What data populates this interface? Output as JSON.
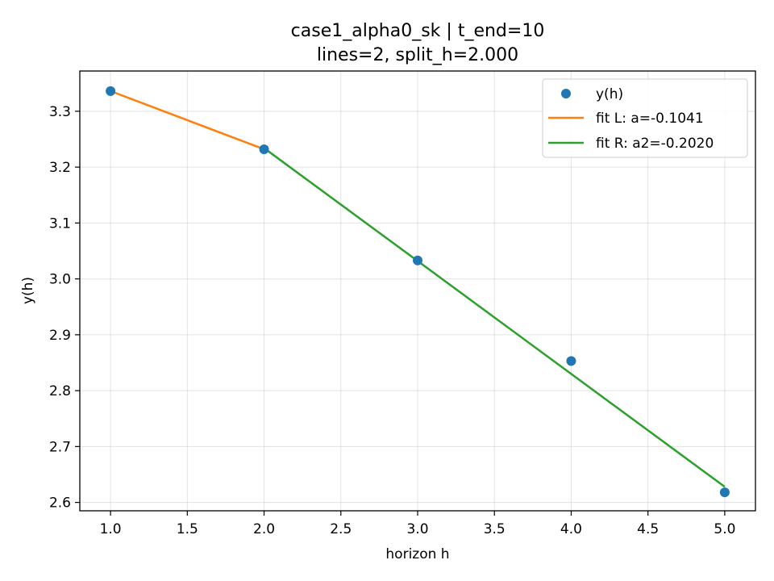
{
  "chart_data": {
    "type": "line",
    "title_line1": "case1_alpha0_sk | t_end=10",
    "title_line2": "lines=2, split_h=2.000",
    "xlabel": "horizon h",
    "ylabel": "y(h)",
    "xlim": [
      0.8,
      5.2
    ],
    "ylim": [
      2.585,
      3.372
    ],
    "xticks": [
      1.0,
      1.5,
      2.0,
      2.5,
      3.0,
      3.5,
      4.0,
      4.5,
      5.0
    ],
    "xtick_labels": [
      "1.0",
      "1.5",
      "2.0",
      "2.5",
      "3.0",
      "3.5",
      "4.0",
      "4.5",
      "5.0"
    ],
    "yticks": [
      2.6,
      2.7,
      2.8,
      2.9,
      3.0,
      3.1,
      3.2,
      3.3
    ],
    "ytick_labels": [
      "2.6",
      "2.7",
      "2.8",
      "2.9",
      "3.0",
      "3.1",
      "3.2",
      "3.3"
    ],
    "grid": true,
    "legend_position": "top-right",
    "points": {
      "name": "y(h)",
      "color": "#1f77b4",
      "x": [
        1.0,
        2.0,
        3.0,
        4.0,
        5.0
      ],
      "y": [
        3.336,
        3.232,
        3.033,
        2.853,
        2.618
      ]
    },
    "fit_left": {
      "name": "fit L: a=-0.1041",
      "color": "#ff7f0e",
      "x": [
        1.0,
        2.0
      ],
      "y": [
        3.3361,
        3.232
      ]
    },
    "fit_right": {
      "name": "fit R: a2=-0.2020",
      "color": "#2ca02c",
      "x": [
        2.0,
        5.0
      ],
      "y": [
        3.234,
        2.628
      ]
    }
  }
}
